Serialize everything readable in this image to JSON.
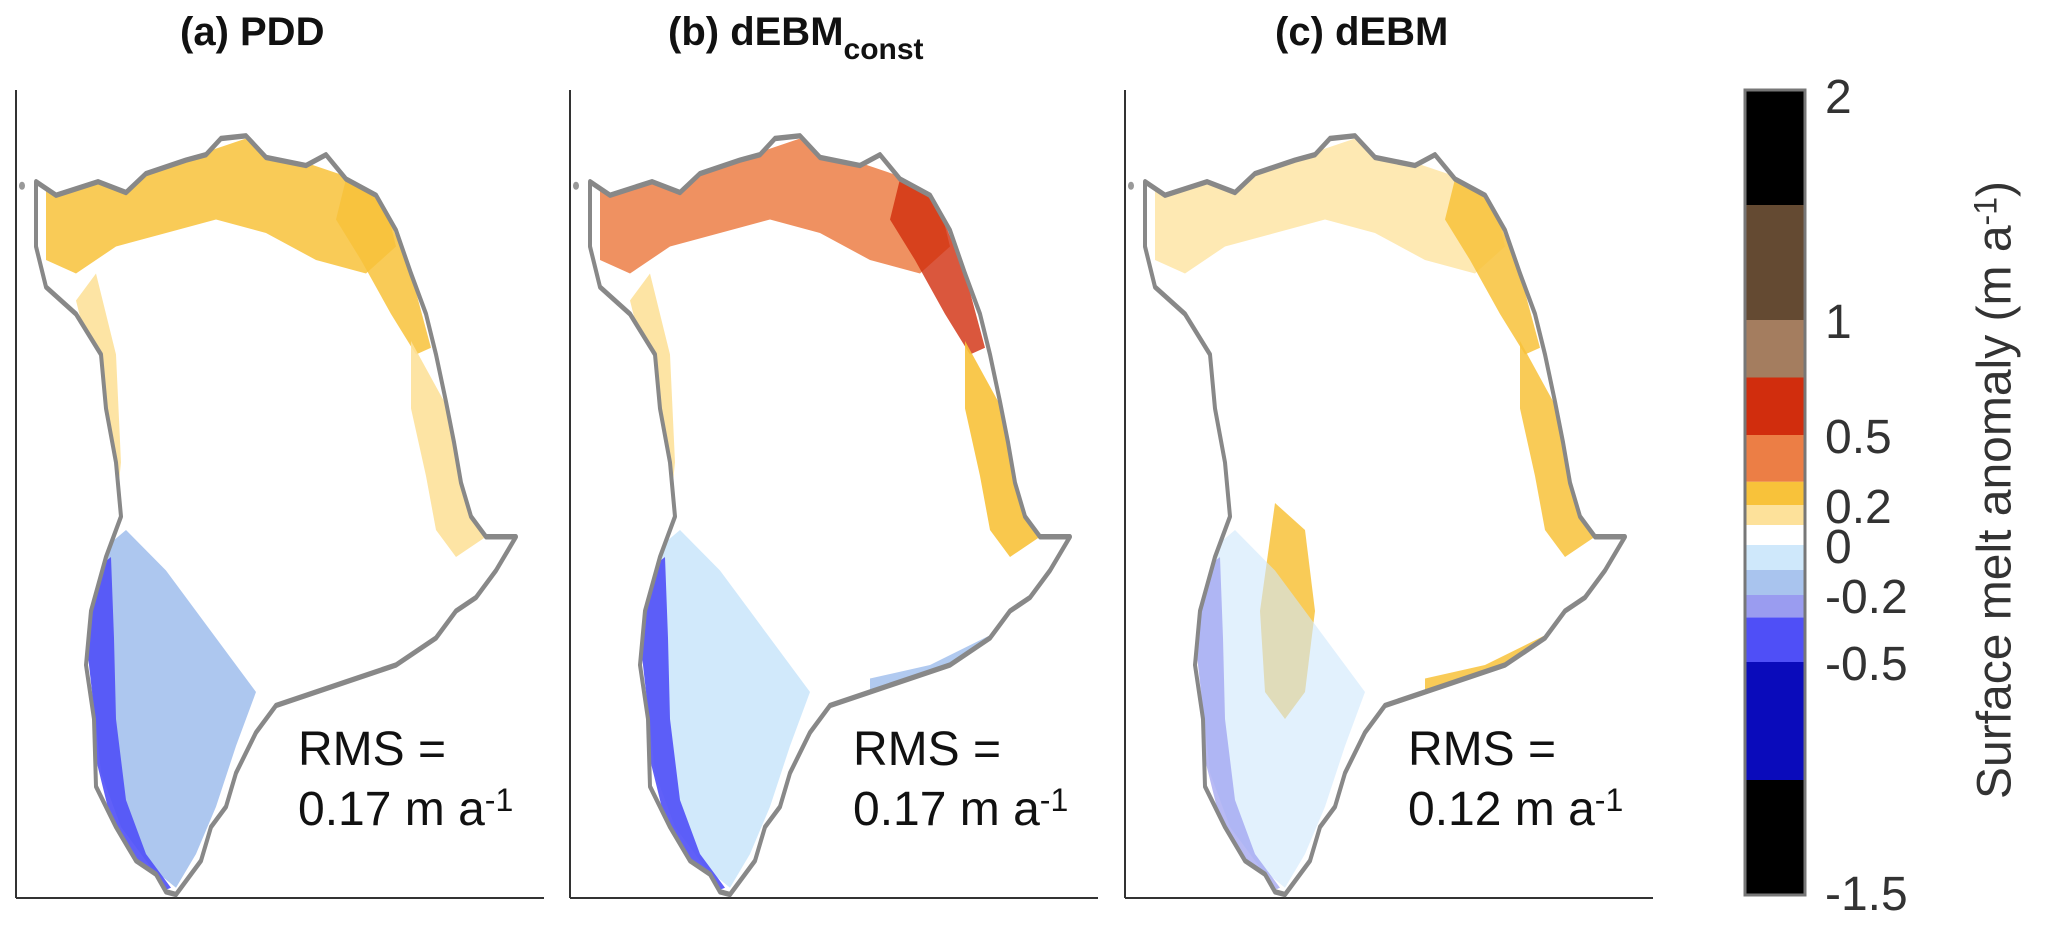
{
  "panels": [
    {
      "title": "(a) PDD",
      "title_sub": "",
      "rms_line1": "RMS =",
      "rms_value": "0.17 m a",
      "rms_exp": "-1"
    },
    {
      "title": "(b) dEBM",
      "title_sub": "const",
      "rms_line1": "RMS =",
      "rms_value": "0.17 m a",
      "rms_exp": "-1"
    },
    {
      "title": "(c) dEBM",
      "title_sub": "",
      "rms_line1": "RMS =",
      "rms_value": "0.12 m a",
      "rms_exp": "-1"
    }
  ],
  "colorbar": {
    "label": "Surface melt anomaly  (m a",
    "label_exp": "-1",
    "label_close": ")",
    "ticks": [
      "2",
      "1",
      "0.5",
      "0.2",
      "0",
      "-0.2",
      "-0.5",
      "-1.5"
    ],
    "segments": [
      {
        "color": "#000000",
        "weight": 1.0
      },
      {
        "color": "#a47d5f",
        "weight": 1.0
      },
      {
        "color": "#644a32",
        "weight": 1.0
      },
      {
        "color": "#000000",
        "weight": 1.0
      }
    ]
  },
  "chart_data": {
    "type": "heatmap",
    "panels": [
      "(a) PDD",
      "(b) dEBM const",
      "(c) dEBM"
    ],
    "rms": [
      0.17,
      0.17,
      0.12
    ],
    "rms_unit": "m a-1",
    "colorbar_label": "Surface melt anomaly (m a-1)",
    "colorbar_ticks": [
      2,
      1,
      0.5,
      0.2,
      0,
      -0.2,
      -0.5,
      -1.5
    ],
    "colorbar_bins": [
      {
        "range": [
          -1.5,
          -1.0
        ],
        "color": "#000000"
      },
      {
        "range": [
          -1.0,
          -0.5
        ],
        "color": "#0a0bbb"
      },
      {
        "range": [
          -0.5,
          -0.3
        ],
        "color": "#4f4ff7"
      },
      {
        "range": [
          -0.3,
          -0.2
        ],
        "color": "#9a9cf0"
      },
      {
        "range": [
          -0.2,
          -0.1
        ],
        "color": "#a9c4ee"
      },
      {
        "range": [
          -0.1,
          0.0
        ],
        "color": "#cfe8fb"
      },
      {
        "range": [
          0.0,
          0.1
        ],
        "color": "#ffffff"
      },
      {
        "range": [
          0.1,
          0.2
        ],
        "color": "#fde19a"
      },
      {
        "range": [
          0.2,
          0.3
        ],
        "color": "#f8c23a"
      },
      {
        "range": [
          0.3,
          0.5
        ],
        "color": "#ec7e45"
      },
      {
        "range": [
          0.5,
          0.75
        ],
        "color": "#d12d0d"
      },
      {
        "range": [
          0.75,
          1.0
        ],
        "color": "#a47d5f"
      },
      {
        "range": [
          1.0,
          1.5
        ],
        "color": "#644a32"
      },
      {
        "range": [
          1.5,
          2.0
        ],
        "color": "#000000"
      }
    ]
  }
}
